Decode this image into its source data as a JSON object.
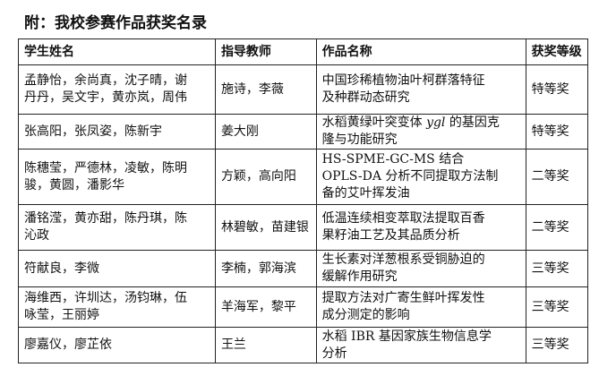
{
  "title": "附：我校参赛作品获奖名录",
  "table": {
    "headers": [
      "学生姓名",
      "指导教师",
      "作品名称",
      "获奖等级"
    ],
    "rows": [
      {
        "students": "孟静怡，余尚真，沈子晴，谢\n丹丹，吴文宇，黄亦岚，周伟",
        "teachers": "施诗，李薇",
        "work": "中国珍稀植物油叶柯群落特征\n及种群动态研究",
        "award": "特等奖"
      },
      {
        "students": "张高阳，张凤姿，陈新宇",
        "teachers": "姜大刚",
        "work_parts": [
          "水稻黄绿叶突变体 ",
          "ygl",
          " 的基因克\n隆与功能研究"
        ],
        "award": "特等奖"
      },
      {
        "students": "陈穗莹，严德林，凌敏，陈明\n骏，黄圆，潘影华",
        "teachers": "方颖，高向阳",
        "work": "HS-SPME-GC-MS 结合\nOPLS-DA 分析不同提取方法制\n备的艾叶挥发油",
        "award": "二等奖"
      },
      {
        "students": "潘铭滢，黄亦甜，陈丹琪，陈\n沁政",
        "teachers": "林碧敏，苗建银",
        "work": "低温连续相变萃取法提取百香\n果籽油工艺及其品质分析",
        "award": "二等奖"
      },
      {
        "students": "符献良，李微",
        "teachers": "李楠，郭海滨",
        "work": "生长素对洋葱根系受铜胁迫的\n缓解作用研究",
        "award": "三等奖"
      },
      {
        "students": "海维西，许圳达，汤钧琳，伍\n咏莹，王丽婷",
        "teachers": "羊海军，黎平",
        "work": "提取方法对广寄生鲜叶挥发性\n成分测定的影响",
        "award": "三等奖"
      },
      {
        "students": "廖嘉仪，廖芷依",
        "teachers": "王兰",
        "work": "水稻 IBR 基因家族生物信息学\n分析",
        "award": "三等奖"
      }
    ]
  }
}
